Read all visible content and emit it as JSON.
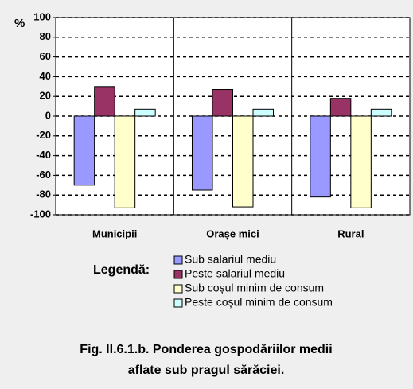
{
  "chart_data": {
    "type": "bar",
    "y_label": "%",
    "categories": [
      "Municipii",
      "Orașe mici",
      "Rural"
    ],
    "series": [
      {
        "name": "Sub salariul mediu",
        "color": "#9999ff",
        "values": [
          -70,
          -75,
          -82
        ]
      },
      {
        "name": "Peste salariul mediu",
        "color": "#993366",
        "values": [
          30,
          27,
          18
        ]
      },
      {
        "name": "Sub coșul minim de consum",
        "color": "#ffffcc",
        "values": [
          -93,
          -92,
          -93
        ]
      },
      {
        "name": "Peste coșul minim de consum",
        "color": "#ccffff",
        "values": [
          7,
          7,
          7
        ]
      }
    ],
    "ylim": [
      -100,
      100
    ],
    "yticks": [
      100,
      80,
      60,
      40,
      20,
      0,
      -20,
      -40,
      -60,
      -80,
      -100
    ],
    "grid": true,
    "legend_title": "Legendă:",
    "caption": [
      "Fig. II.6.1.b.  Ponderea gospodăriilor medii",
      "aflate sub pragul sărăciei."
    ]
  }
}
